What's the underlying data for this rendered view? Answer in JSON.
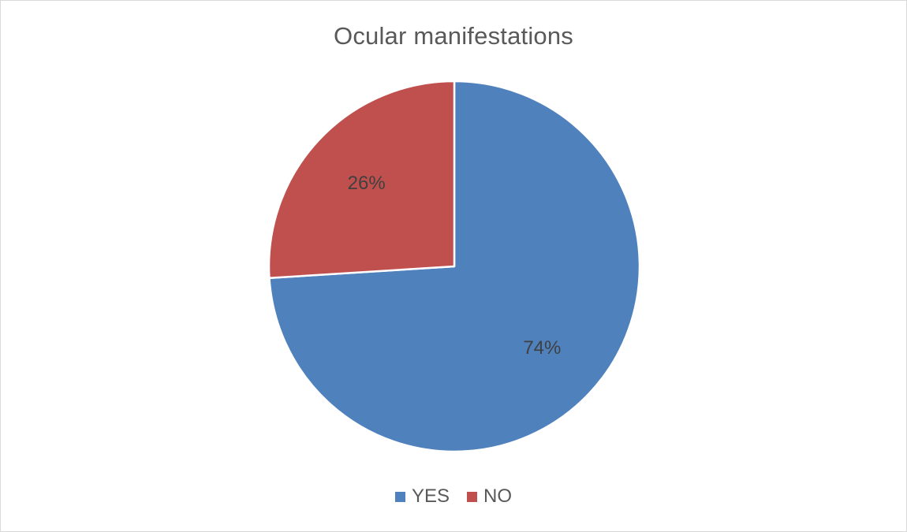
{
  "chart_data": {
    "type": "pie",
    "title": "Ocular manifestations",
    "categories": [
      "YES",
      "NO"
    ],
    "values": [
      74,
      26
    ],
    "data_labels": [
      "74%",
      "26%"
    ],
    "colors": [
      "#4f81bd",
      "#c0504d"
    ],
    "start_angle_deg": 0,
    "direction": "clockwise",
    "legend_position": "bottom"
  }
}
